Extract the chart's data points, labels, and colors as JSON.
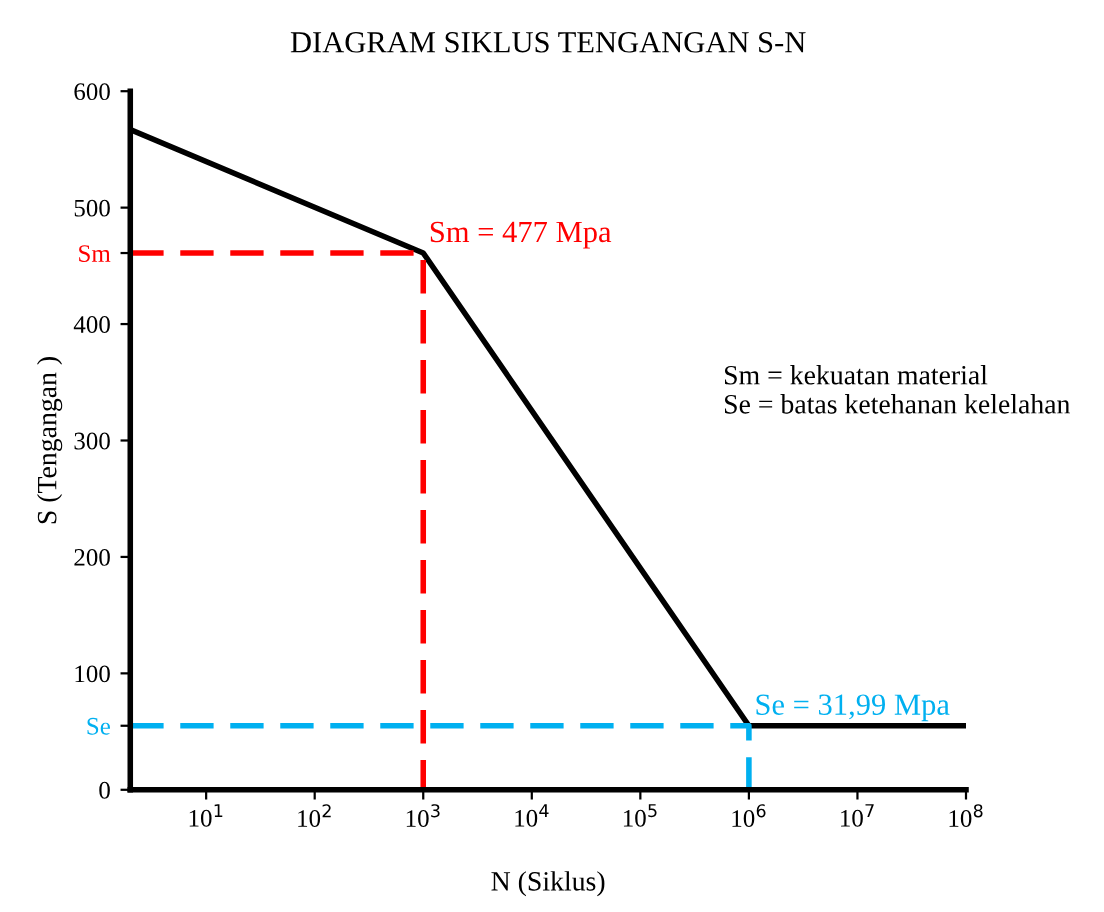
{
  "chart_data": {
    "type": "line",
    "title": "DIAGRAM SIKLUS TENGANGAN S-N",
    "xlabel": "N (Siklus)",
    "ylabel": "S (Tengangan )",
    "log": "x",
    "xlim": [
      2,
      100000000
    ],
    "xticks": [
      {
        "value": 10,
        "label": "10$^{1}$"
      },
      {
        "value": 100,
        "label": "10$^{2}$"
      },
      {
        "value": 1000,
        "label": "10$^{3}$"
      },
      {
        "value": 10000,
        "label": "10$^{4}$"
      },
      {
        "value": 100000,
        "label": "10$^{5}$"
      },
      {
        "value": 1000000,
        "label": "10$^{6}$"
      },
      {
        "value": 10000000,
        "label": "10$^{7}$"
      },
      {
        "value": 100000000,
        "label": "10$^{8}$"
      }
    ],
    "ylim": [
      0,
      600
    ],
    "yticks": [
      0,
      {
        "value": 55,
        "label": "Se"
      },
      100,
      200,
      300,
      400,
      {
        "value": 461,
        "label": "Sm"
      },
      500,
      600
    ],
    "grid": false,
    "marker": "none",
    "series": [
      {
        "color": "#000000",
        "line_style": "solid",
        "x": [
          2,
          1000,
          1000000,
          100000000
        ],
        "values": [
          567,
          461,
          55,
          55
        ]
      },
      {
        "color": "#ff0000",
        "line_style": "dashed",
        "x": [
          2,
          1000,
          1000
        ],
        "values": [
          461,
          461,
          0
        ]
      },
      {
        "color": "#00b0f0",
        "line_style": "dashed",
        "x": [
          2,
          1000000,
          1000000
        ],
        "values": [
          55,
          55,
          0
        ]
      }
    ],
    "annotations": [
      {
        "text": "Sm = 477 Mpa",
        "x": 1000,
        "y": 461
      },
      {
        "text": "Se = 31,99 Mpa",
        "x": 1000000,
        "y": 55
      },
      "Sm = kekuatan material\nSe = batas ketehanan kelelahan"
    ]
  }
}
